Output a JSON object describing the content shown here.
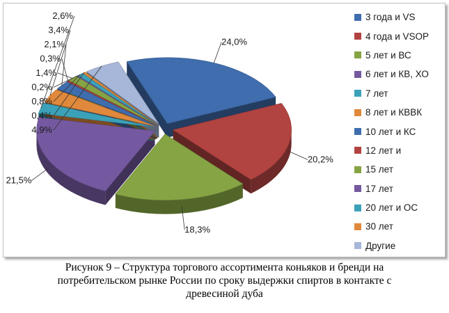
{
  "chart_data": {
    "type": "pie",
    "title": "",
    "categories": [
      "3 года и VS",
      "4 года и VSOP",
      "5 лет и ВС",
      "6 лет и КВ, ХО",
      "7 лет",
      "8 лет и КВВК",
      "10 лет и КС",
      "12 лет и",
      "15 лет",
      "17 лет",
      "20 лет и ОС",
      "30 лет",
      "Другие"
    ],
    "values": [
      24.0,
      20.2,
      18.3,
      21.5,
      2.6,
      3.4,
      2.1,
      0.3,
      1.4,
      0.2,
      0.8,
      0.4,
      4.9
    ],
    "data_labels": [
      "24,0%",
      "20,2%",
      "18,3%",
      "21,5%",
      "2,6%",
      "3,4%",
      "2,1%",
      "0,3%",
      "1,4%",
      "0,2%",
      "0,8%",
      "0,4%",
      "4,9%"
    ],
    "colors": [
      "#3f6dae",
      "#b14341",
      "#86a444",
      "#7559a0",
      "#3ba1b8",
      "#e0883c",
      "#3f6dae",
      "#b14341",
      "#86a444",
      "#7559a0",
      "#3ba1b8",
      "#e0883c",
      "#a6b7d9"
    ],
    "legend_position": "right",
    "style": "3d-exploded"
  },
  "caption": {
    "line1": "Рисунок 9 – Структура торгового ассортимента коньяков и  бренди на",
    "line2": "потребительском рынке России по сроку выдержки спиртов в контакте с",
    "line3": "древесиной дуба"
  }
}
